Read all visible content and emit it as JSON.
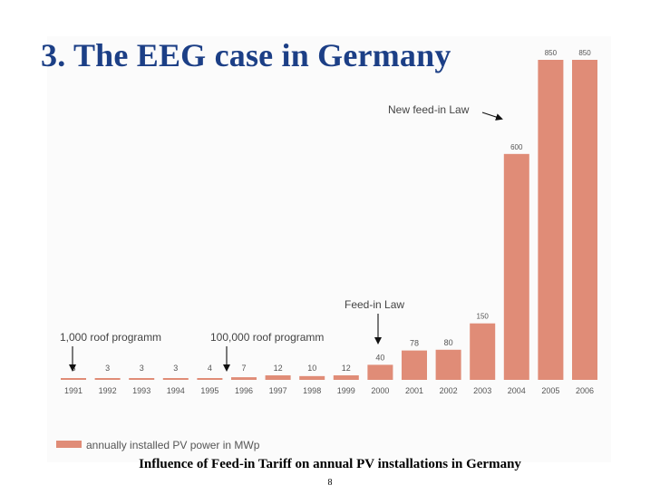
{
  "slide": {
    "title": "3. The EEG case in Germany",
    "caption": "Influence of Feed-in Tariff on annual PV installations in Germany",
    "page_number": "8"
  },
  "colors": {
    "bar": "#e08c77",
    "title": "#1c3f86",
    "text": "#555555"
  },
  "chart_data": {
    "type": "bar",
    "categories": [
      "1991",
      "1992",
      "1993",
      "1994",
      "1995",
      "1996",
      "1997",
      "1998",
      "1999",
      "2000",
      "2001",
      "2002",
      "2003",
      "2004",
      "2005",
      "2006"
    ],
    "series": [
      {
        "name": "annually installed PV power in MWp",
        "values": [
          3,
          3,
          3,
          3,
          4,
          7,
          12,
          10,
          12,
          40,
          78,
          80,
          150,
          600,
          850,
          850
        ]
      }
    ],
    "ylim": [
      0,
      850
    ],
    "legend_position": "bottom-left",
    "grid": false,
    "annotations": [
      {
        "text": "1,000 roof programm",
        "category": "1991"
      },
      {
        "text": "100,000 roof programm",
        "category": "1997"
      },
      {
        "text": "Feed-in Law",
        "category": "2000"
      },
      {
        "text": "New feed-in Law",
        "category": "2004"
      }
    ]
  }
}
